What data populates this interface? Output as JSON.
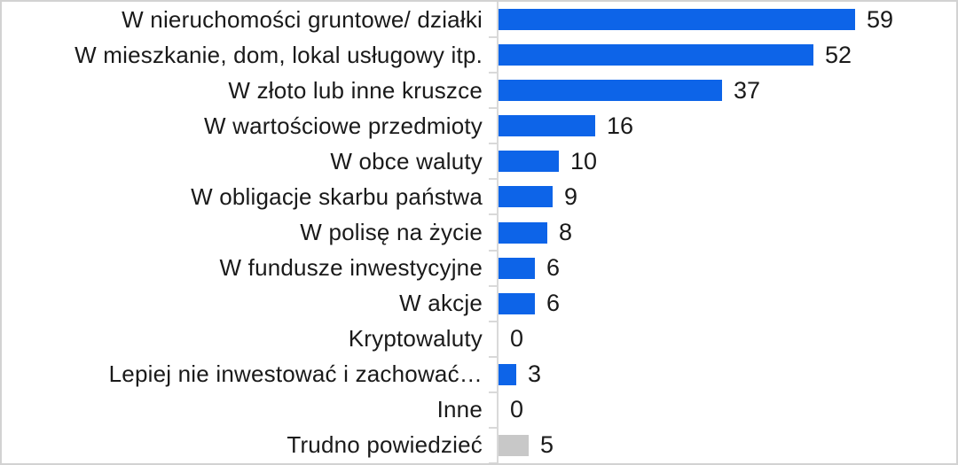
{
  "chart_data": {
    "type": "bar",
    "orientation": "horizontal",
    "title": "",
    "xlabel": "",
    "ylabel": "",
    "xlim": [
      0,
      75
    ],
    "grid": false,
    "legend": "none",
    "categories": [
      "W nieruchomości gruntowe/ działki",
      "W mieszkanie, dom, lokal usługowy itp.",
      "W złoto lub inne kruszce",
      "W wartościowe przedmioty",
      "W obce waluty",
      "W obligacje skarbu państwa",
      "W polisę na życie",
      "W fundusze inwestycyjne",
      "W akcje",
      "Kryptowaluty",
      "Lepiej nie inwestować i zachować…",
      "Inne",
      "Trudno powiedzieć"
    ],
    "values": [
      59,
      52,
      37,
      16,
      10,
      9,
      8,
      6,
      6,
      0,
      3,
      0,
      5
    ],
    "bar_colors": [
      "#0d64e8",
      "#0d64e8",
      "#0d64e8",
      "#0d64e8",
      "#0d64e8",
      "#0d64e8",
      "#0d64e8",
      "#0d64e8",
      "#0d64e8",
      "#0d64e8",
      "#0d64e8",
      "#0d64e8",
      "#c8c8c8"
    ],
    "data_labels_shown": true
  },
  "colors": {
    "bar_primary": "#0d64e8",
    "bar_neutral": "#c8c8c8",
    "text": "#1a1a1a",
    "axis": "#d9d9d9",
    "frame": "#d2d2d2",
    "background": "#ffffff"
  }
}
